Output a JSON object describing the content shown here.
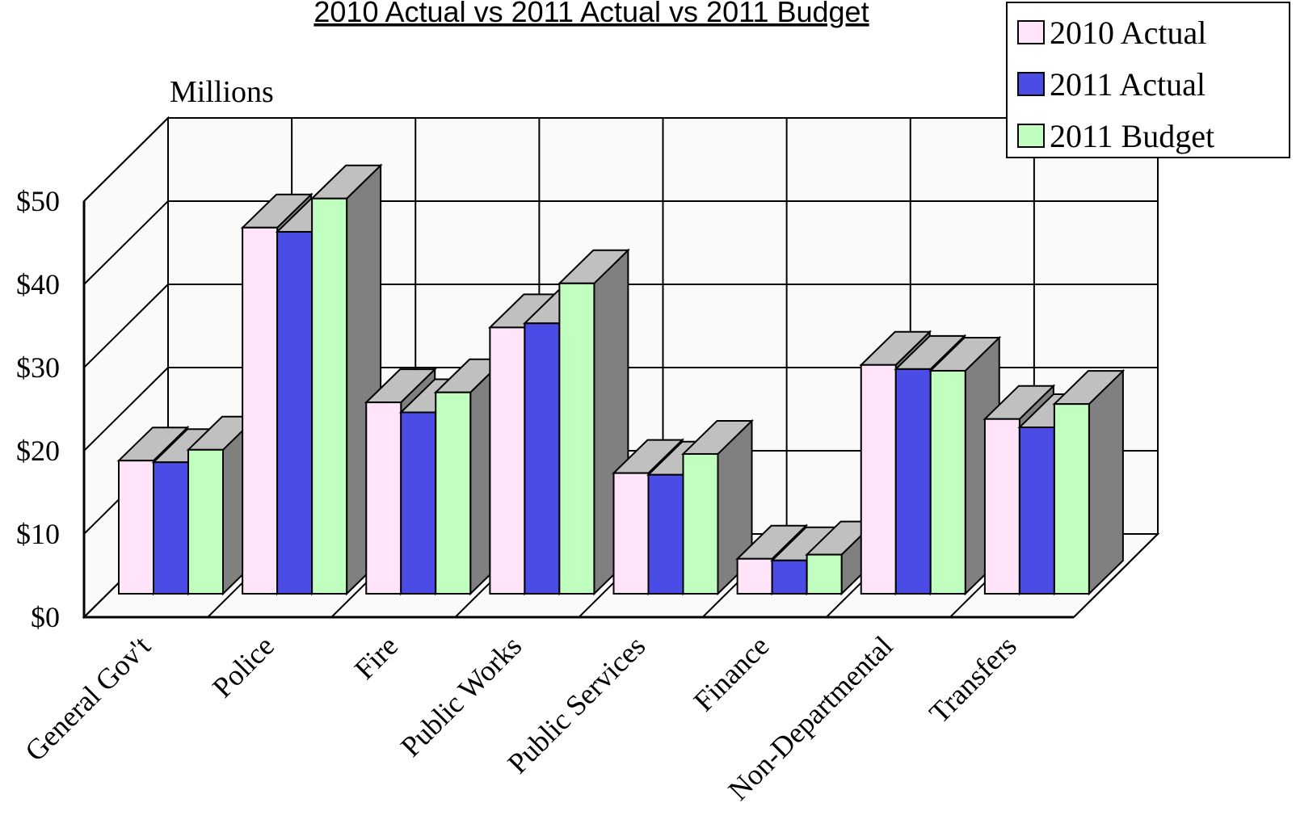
{
  "chart_data": {
    "type": "bar",
    "title": "2010 Actual vs 2011 Actual vs 2011 Budget",
    "ylabel": "Millions",
    "xlabel": "",
    "ylim": [
      0,
      50
    ],
    "yticks": [
      "$0",
      "$10",
      "$20",
      "$30",
      "$40",
      "$50"
    ],
    "grid": true,
    "three_d": true,
    "legend_position": "top-right",
    "categories": [
      "General Gov't",
      "Police",
      "Fire",
      "Public Works",
      "Public Services",
      "Finance",
      "Non-Departmental",
      "Transfers"
    ],
    "series": [
      {
        "name": "2010 Actual",
        "color": "#ffe4fa",
        "values": [
          16.0,
          44.0,
          23.0,
          32.0,
          14.5,
          4.2,
          27.5,
          21.0
        ]
      },
      {
        "name": "2011 Actual",
        "color": "#4b4be6",
        "values": [
          15.8,
          43.5,
          21.8,
          32.5,
          14.3,
          4.0,
          27.0,
          20.0
        ]
      },
      {
        "name": "2011 Budget",
        "color": "#c0ffc0",
        "values": [
          17.3,
          47.5,
          24.2,
          37.3,
          16.8,
          4.7,
          26.8,
          22.8
        ]
      }
    ],
    "wall_color": "#fafafa",
    "side_color": "#808080",
    "top_color": "#c0c0c0"
  }
}
